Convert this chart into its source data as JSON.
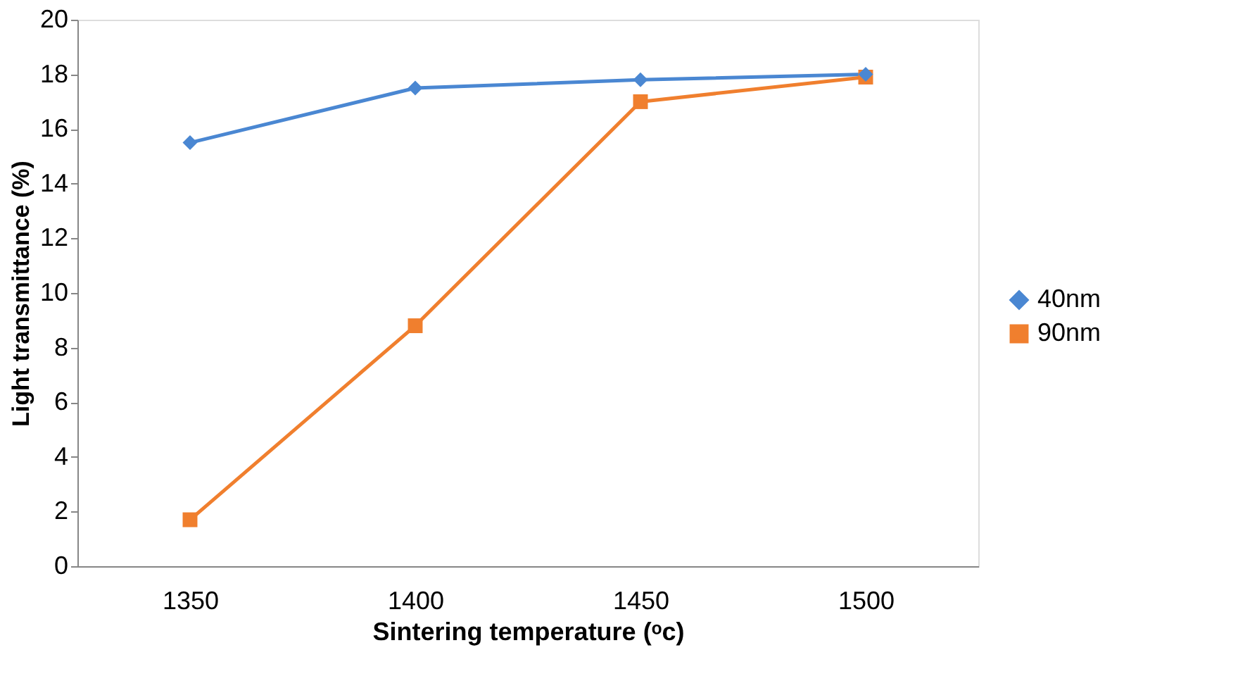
{
  "chart_data": {
    "type": "line",
    "xlabel": "Sintering temperature (ᵒc)",
    "ylabel": "Light transmittance (%)",
    "categories": [
      "1350",
      "1400",
      "1450",
      "1500"
    ],
    "series": [
      {
        "name": "40nm",
        "color": "#4a87d2",
        "marker": "diamond",
        "values": [
          15.5,
          17.5,
          17.8,
          18.0
        ]
      },
      {
        "name": "90nm",
        "color": "#f07f2e",
        "marker": "square",
        "values": [
          1.7,
          8.8,
          17.0,
          17.9
        ]
      }
    ],
    "ylim": [
      0,
      20
    ],
    "yticks": [
      0,
      2,
      4,
      6,
      8,
      10,
      12,
      14,
      16,
      18,
      20
    ],
    "grid": false,
    "legend": "right"
  }
}
